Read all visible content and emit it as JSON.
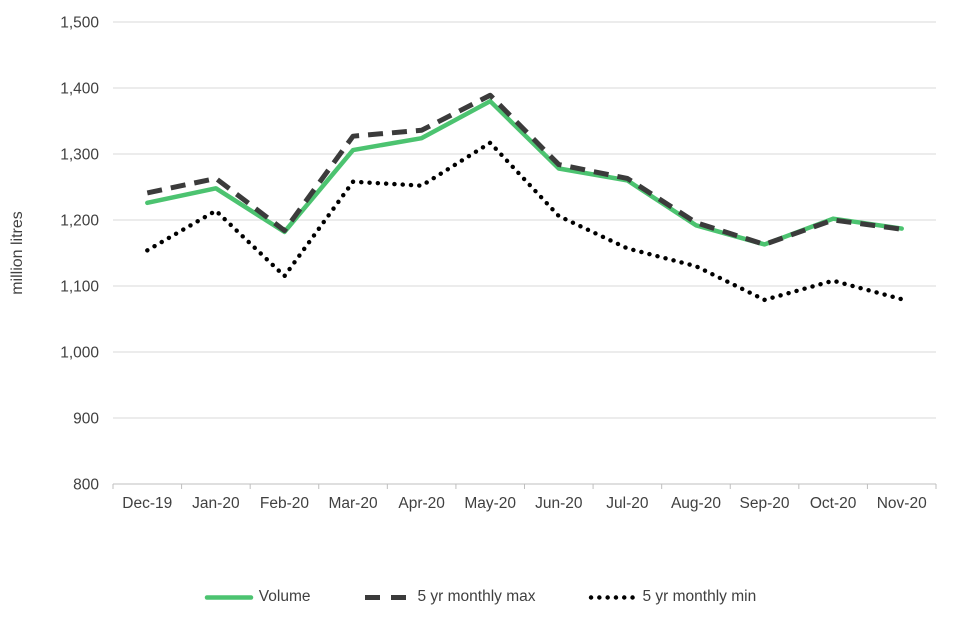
{
  "chart_data": {
    "type": "line",
    "title": "",
    "xlabel": "",
    "ylabel": "million litres",
    "categories": [
      "Dec-19",
      "Jan-20",
      "Feb-20",
      "Mar-20",
      "Apr-20",
      "May-20",
      "Jun-20",
      "Jul-20",
      "Aug-20",
      "Sep-20",
      "Oct-20",
      "Nov-20"
    ],
    "series": [
      {
        "name": "Volume",
        "color": "#4CC370",
        "style": "solid",
        "values": [
          1226,
          1248,
          1182,
          1306,
          1324,
          1380,
          1278,
          1260,
          1192,
          1163,
          1202,
          1187
        ]
      },
      {
        "name": "5 yr monthly max",
        "color": "#3B3B3B",
        "style": "dashed",
        "values": [
          1241,
          1263,
          1184,
          1327,
          1336,
          1389,
          1284,
          1263,
          1196,
          1163,
          1200,
          1186
        ]
      },
      {
        "name": "5 yr monthly min",
        "color": "#000000",
        "style": "dotted",
        "values": [
          1154,
          1214,
          1115,
          1258,
          1252,
          1317,
          1206,
          1157,
          1130,
          1079,
          1108,
          1080
        ]
      }
    ],
    "ylim": [
      800,
      1500
    ],
    "yticks": [
      {
        "value": 800,
        "label": "800"
      },
      {
        "value": 900,
        "label": "900"
      },
      {
        "value": 1000,
        "label": "1,000"
      },
      {
        "value": 1100,
        "label": "1,100"
      },
      {
        "value": 1200,
        "label": "1,200"
      },
      {
        "value": 1300,
        "label": "1,300"
      },
      {
        "value": 1400,
        "label": "1,400"
      },
      {
        "value": 1500,
        "label": "1,500"
      }
    ],
    "grid": true,
    "legend_position": "bottom",
    "colors": {
      "gridline": "#d9d9d9",
      "axis_line": "#bfbfbf",
      "text": "#404040",
      "background": "#ffffff"
    }
  }
}
